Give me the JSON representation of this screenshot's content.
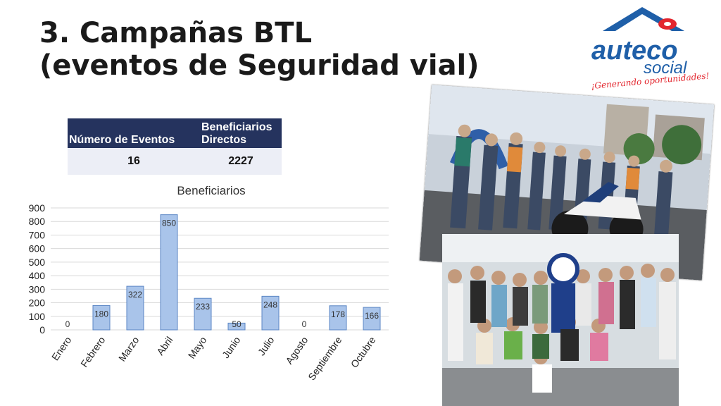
{
  "slide": {
    "title_line1": "3. Campañas BTL",
    "title_line2": "(eventos de Seguridad vial)"
  },
  "logo": {
    "brand": "auteco",
    "sub": "social",
    "tagline": "¡Generando oportunidades!",
    "colors": {
      "roof": "#1f5fa8",
      "brand": "#1f5fa8",
      "accent": "#e3262e"
    }
  },
  "stats_table": {
    "headers": [
      "Número de Eventos",
      "Beneficiarios Directos"
    ],
    "values": [
      "16",
      "2227"
    ]
  },
  "chart_data": {
    "type": "bar",
    "title": "Beneficiarios",
    "categories": [
      "Enero",
      "Febrero",
      "Marzo",
      "Abril",
      "Mayo",
      "Junio",
      "Julio",
      "Agosto",
      "Septiembre",
      "Octubre"
    ],
    "values": [
      0,
      180,
      322,
      850,
      233,
      50,
      248,
      0,
      178,
      166
    ],
    "data_labels": [
      "0",
      "180",
      "322",
      "850",
      "233",
      "50",
      "248",
      "0",
      "178",
      "166"
    ],
    "yticks": [
      "0",
      "100",
      "200",
      "300",
      "400",
      "500",
      "600",
      "700",
      "800",
      "900"
    ],
    "ylim": [
      0,
      900
    ],
    "grid": true,
    "bar_color": "#a9c4ea",
    "bar_edge": "#5b86c4"
  }
}
